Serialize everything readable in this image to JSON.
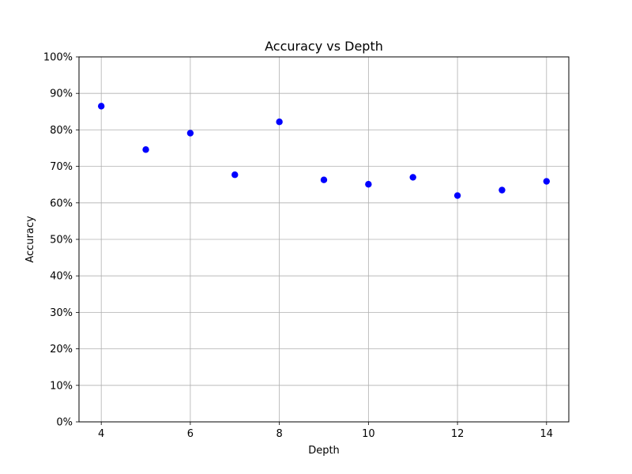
{
  "chart_data": {
    "type": "scatter",
    "title": "Accuracy vs Depth",
    "xlabel": "Depth",
    "ylabel": "Accuracy",
    "x": [
      4,
      5,
      6,
      7,
      8,
      9,
      10,
      11,
      12,
      13,
      14
    ],
    "y": [
      0.865,
      0.746,
      0.791,
      0.677,
      0.822,
      0.663,
      0.651,
      0.67,
      0.62,
      0.635,
      0.659
    ],
    "xlim": [
      3.5,
      14.5
    ],
    "ylim": [
      0,
      1
    ],
    "xticks": [
      4,
      6,
      8,
      10,
      12,
      14
    ],
    "xtick_labels": [
      "4",
      "6",
      "8",
      "10",
      "12",
      "14"
    ],
    "yticks": [
      0,
      0.1,
      0.2,
      0.3,
      0.4,
      0.5,
      0.6,
      0.7,
      0.8,
      0.9,
      1.0
    ],
    "ytick_labels": [
      "0%",
      "10%",
      "20%",
      "30%",
      "40%",
      "50%",
      "60%",
      "70%",
      "80%",
      "90%",
      "100%"
    ],
    "grid": true,
    "marker_color": "#0000ff"
  }
}
